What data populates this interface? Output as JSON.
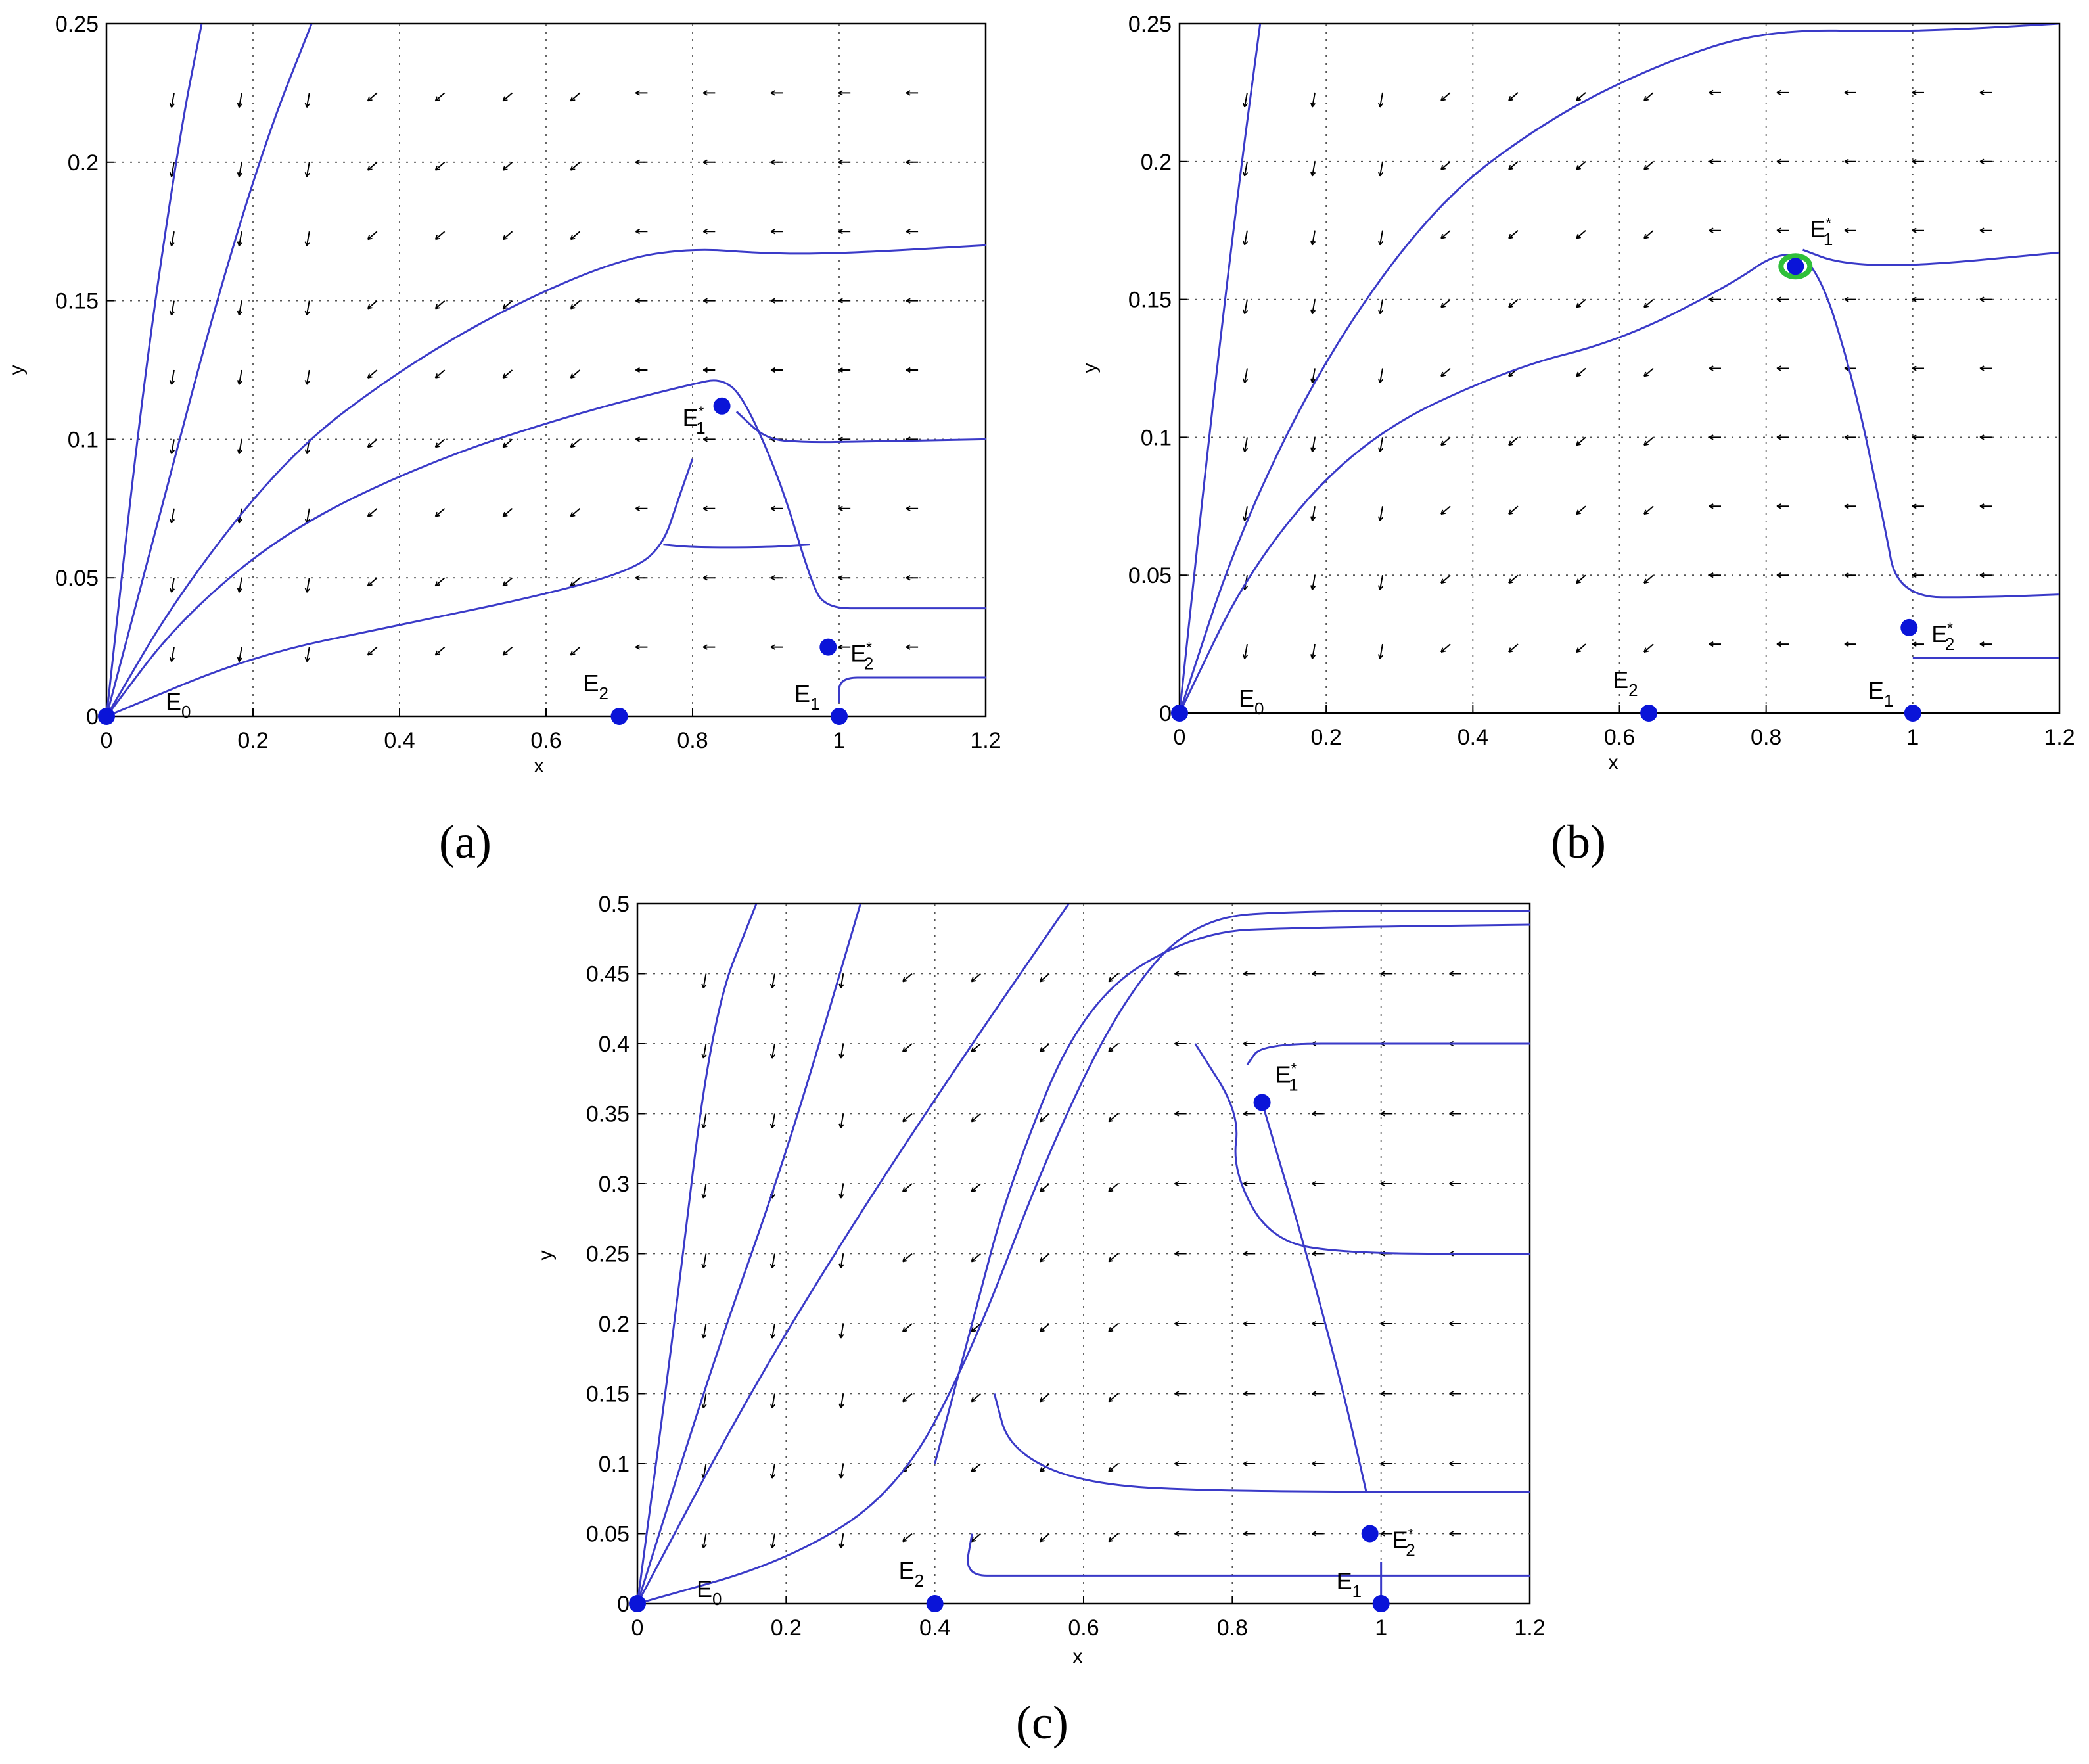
{
  "figure": {
    "panel_labels": [
      "(a)",
      "(b)",
      "(c)"
    ]
  },
  "colors": {
    "trajectory": "#3a3ac8",
    "equilibrium": "#0a14d8",
    "field_arrow": "#000000",
    "grid": "#555555",
    "limit_cycle": "#2fbf3a"
  },
  "chart_data": [
    {
      "type": "scatter",
      "panel": "(a)",
      "xlabel": "x",
      "ylabel": "y",
      "xlim": [
        0,
        1.2
      ],
      "ylim": [
        0,
        0.25
      ],
      "xticks": [
        "0",
        "0.2",
        "0.4",
        "0.6",
        "0.8",
        "1",
        "1.2"
      ],
      "yticks": [
        "0",
        "0.05",
        "0.1",
        "0.15",
        "0.2",
        "0.25"
      ],
      "grid": true,
      "equilibria": [
        {
          "name": "E0",
          "base": "E",
          "sub": "0",
          "sup": "",
          "x": 0,
          "y": 0
        },
        {
          "name": "E2",
          "base": "E",
          "sub": "2",
          "sup": "",
          "x": 0.7,
          "y": 0
        },
        {
          "name": "E1",
          "base": "E",
          "sub": "1",
          "sup": "",
          "x": 1.0,
          "y": 0
        },
        {
          "name": "E1*",
          "base": "E",
          "sub": "1",
          "sup": "*",
          "x": 0.84,
          "y": 0.112
        },
        {
          "name": "E2*",
          "base": "E",
          "sub": "2",
          "sup": "*",
          "x": 0.985,
          "y": 0.025
        }
      ],
      "trajectories": [
        [
          [
            0,
            0
          ],
          [
            0.05,
            0.12
          ],
          [
            0.1,
            0.21
          ],
          [
            0.13,
            0.25
          ]
        ],
        [
          [
            0,
            0
          ],
          [
            0.08,
            0.08
          ],
          [
            0.15,
            0.15
          ],
          [
            0.22,
            0.21
          ],
          [
            0.28,
            0.25
          ]
        ],
        [
          [
            0,
            0
          ],
          [
            0.1,
            0.045
          ],
          [
            0.25,
            0.095
          ],
          [
            0.4,
            0.125
          ],
          [
            0.55,
            0.148
          ],
          [
            0.7,
            0.165
          ],
          [
            0.8,
            0.169
          ],
          [
            0.9,
            0.167
          ],
          [
            1.0,
            0.167
          ],
          [
            1.2,
            0.17
          ]
        ],
        [
          [
            0,
            0
          ],
          [
            0.1,
            0.035
          ],
          [
            0.25,
            0.068
          ],
          [
            0.45,
            0.093
          ],
          [
            0.65,
            0.11
          ],
          [
            0.8,
            0.12
          ],
          [
            0.84,
            0.122
          ],
          [
            0.87,
            0.115
          ],
          [
            0.92,
            0.085
          ],
          [
            0.96,
            0.05
          ],
          [
            0.98,
            0.039
          ],
          [
            1.05,
            0.039
          ],
          [
            1.2,
            0.039
          ]
        ],
        [
          [
            0,
            0
          ],
          [
            0.2,
            0.022
          ],
          [
            0.4,
            0.033
          ],
          [
            0.6,
            0.044
          ],
          [
            0.72,
            0.053
          ],
          [
            0.76,
            0.062
          ],
          [
            0.78,
            0.078
          ],
          [
            0.8,
            0.093
          ]
        ],
        [
          [
            0.76,
            0.062
          ],
          [
            0.8,
            0.061
          ],
          [
            0.9,
            0.061
          ],
          [
            0.96,
            0.062
          ]
        ],
        [
          [
            0.86,
            0.11
          ],
          [
            0.9,
            0.1
          ],
          [
            0.95,
            0.099
          ],
          [
            1.0,
            0.099
          ],
          [
            1.2,
            0.1
          ]
        ],
        [
          [
            1.0,
            0.005
          ],
          [
            1.0,
            0.014
          ],
          [
            1.05,
            0.014
          ],
          [
            1.2,
            0.014
          ]
        ]
      ]
    },
    {
      "type": "scatter",
      "panel": "(b)",
      "xlabel": "x",
      "ylabel": "y",
      "xlim": [
        0,
        1.2
      ],
      "ylim": [
        0,
        0.25
      ],
      "xticks": [
        "0",
        "0.2",
        "0.4",
        "0.6",
        "0.8",
        "1",
        "1.2"
      ],
      "yticks": [
        "0",
        "0.05",
        "0.1",
        "0.15",
        "0.2",
        "0.25"
      ],
      "grid": true,
      "equilibria": [
        {
          "name": "E0",
          "base": "E",
          "sub": "0",
          "sup": "",
          "x": 0,
          "y": 0
        },
        {
          "name": "E2",
          "base": "E",
          "sub": "2",
          "sup": "",
          "x": 0.64,
          "y": 0
        },
        {
          "name": "E1",
          "base": "E",
          "sub": "1",
          "sup": "",
          "x": 1.0,
          "y": 0
        },
        {
          "name": "E1*",
          "base": "E",
          "sub": "1",
          "sup": "*",
          "x": 0.84,
          "y": 0.162
        },
        {
          "name": "E2*",
          "base": "E",
          "sub": "2",
          "sup": "*",
          "x": 0.995,
          "y": 0.031
        }
      ],
      "trajectories": [
        [
          [
            0,
            0
          ],
          [
            0.04,
            0.1
          ],
          [
            0.08,
            0.19
          ],
          [
            0.11,
            0.25
          ]
        ],
        [
          [
            0,
            0
          ],
          [
            0.08,
            0.065
          ],
          [
            0.2,
            0.13
          ],
          [
            0.35,
            0.185
          ],
          [
            0.5,
            0.215
          ],
          [
            0.65,
            0.235
          ],
          [
            0.8,
            0.248
          ],
          [
            1.0,
            0.247
          ],
          [
            1.2,
            0.25
          ]
        ],
        [
          [
            0,
            0
          ],
          [
            0.1,
            0.055
          ],
          [
            0.25,
            0.1
          ],
          [
            0.45,
            0.125
          ],
          [
            0.6,
            0.135
          ],
          [
            0.75,
            0.155
          ],
          [
            0.82,
            0.168
          ],
          [
            0.87,
            0.163
          ],
          [
            0.92,
            0.12
          ],
          [
            0.96,
            0.07
          ],
          [
            0.98,
            0.042
          ],
          [
            1.1,
            0.042
          ],
          [
            1.2,
            0.043
          ]
        ],
        [
          [
            0.85,
            0.168
          ],
          [
            0.9,
            0.163
          ],
          [
            1.0,
            0.162
          ],
          [
            1.2,
            0.167
          ]
        ],
        [
          [
            1.0,
            0.02
          ],
          [
            1.1,
            0.02
          ],
          [
            1.2,
            0.02
          ]
        ]
      ]
    },
    {
      "type": "scatter",
      "panel": "(c)",
      "xlabel": "x",
      "ylabel": "y",
      "xlim": [
        0,
        1.2
      ],
      "ylim": [
        0,
        0.5
      ],
      "xticks": [
        "0",
        "0.2",
        "0.4",
        "0.6",
        "0.8",
        "1",
        "1.2"
      ],
      "yticks": [
        "0",
        "0.05",
        "0.1",
        "0.15",
        "0.2",
        "0.25",
        "0.3",
        "0.35",
        "0.4",
        "0.45",
        "0.5"
      ],
      "grid": true,
      "equilibria": [
        {
          "name": "E0",
          "base": "E",
          "sub": "0",
          "sup": "",
          "x": 0,
          "y": 0
        },
        {
          "name": "E2",
          "base": "E",
          "sub": "2",
          "sup": "",
          "x": 0.4,
          "y": 0
        },
        {
          "name": "E1",
          "base": "E",
          "sub": "1",
          "sup": "",
          "x": 1.0,
          "y": 0
        },
        {
          "name": "E1*",
          "base": "E",
          "sub": "1",
          "sup": "*",
          "x": 0.84,
          "y": 0.358
        },
        {
          "name": "E2*",
          "base": "E",
          "sub": "2",
          "sup": "*",
          "x": 0.985,
          "y": 0.05
        }
      ],
      "trajectories": [
        [
          [
            0,
            0
          ],
          [
            0.05,
            0.2
          ],
          [
            0.1,
            0.42
          ],
          [
            0.16,
            0.5
          ]
        ],
        [
          [
            0,
            0
          ],
          [
            0.1,
            0.17
          ],
          [
            0.2,
            0.32
          ],
          [
            0.3,
            0.5
          ]
        ],
        [
          [
            0,
            0
          ],
          [
            0.15,
            0.15
          ],
          [
            0.3,
            0.28
          ],
          [
            0.45,
            0.4
          ],
          [
            0.58,
            0.5
          ]
        ],
        [
          [
            0,
            0
          ],
          [
            0.2,
            0.03
          ],
          [
            0.35,
            0.08
          ],
          [
            0.45,
            0.18
          ],
          [
            0.55,
            0.32
          ],
          [
            0.65,
            0.43
          ],
          [
            0.75,
            0.49
          ],
          [
            0.9,
            0.495
          ],
          [
            1.2,
            0.495
          ]
        ],
        [
          [
            0.45,
            0.05
          ],
          [
            0.44,
            0.02
          ],
          [
            0.5,
            0.02
          ],
          [
            0.8,
            0.02
          ],
          [
            1.2,
            0.02
          ]
        ],
        [
          [
            0.4,
            0.1
          ],
          [
            0.45,
            0.2
          ],
          [
            0.5,
            0.3
          ],
          [
            0.6,
            0.43
          ],
          [
            0.75,
            0.48
          ],
          [
            0.9,
            0.483
          ],
          [
            1.2,
            0.485
          ]
        ],
        [
          [
            0.48,
            0.15
          ],
          [
            0.5,
            0.11
          ],
          [
            0.6,
            0.085
          ],
          [
            0.8,
            0.08
          ],
          [
            1.2,
            0.08
          ]
        ],
        [
          [
            0.75,
            0.4
          ],
          [
            0.81,
            0.35
          ],
          [
            0.8,
            0.31
          ],
          [
            0.85,
            0.26
          ],
          [
            0.95,
            0.25
          ],
          [
            1.2,
            0.25
          ]
        ],
        [
          [
            0.82,
            0.385
          ],
          [
            0.84,
            0.4
          ],
          [
            1.0,
            0.4
          ],
          [
            1.2,
            0.4
          ]
        ],
        [
          [
            0.84,
            0.358
          ],
          [
            0.9,
            0.25
          ],
          [
            0.95,
            0.15
          ],
          [
            0.98,
            0.08
          ]
        ],
        [
          [
            1.0,
            0.03
          ],
          [
            1.0,
            0.0
          ]
        ]
      ]
    }
  ]
}
